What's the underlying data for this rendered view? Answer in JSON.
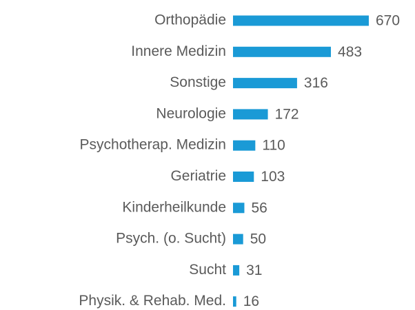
{
  "chart_data": {
    "type": "hbar",
    "categories": [
      "Orthopädie",
      "Innere Medizin",
      "Sonstige",
      "Neurologie",
      "Psychotherap. Medizin",
      "Geriatrie",
      "Kinderheilkunde",
      "Psych. (o. Sucht)",
      "Sucht",
      "Physik. & Rehab. Med."
    ],
    "values": [
      670,
      483,
      316,
      172,
      110,
      103,
      56,
      50,
      31,
      16
    ],
    "color": "#1a9ad6"
  }
}
